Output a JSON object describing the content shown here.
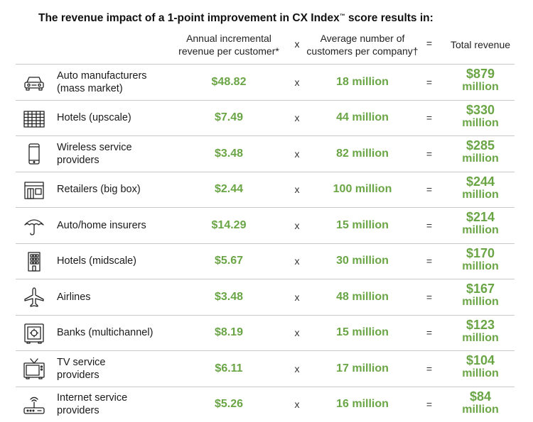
{
  "title": {
    "text": "The revenue impact of a 1-point improvement in CX Index",
    "tm": "™",
    "suffix": " score results in:"
  },
  "headers": {
    "annual_line1": "Annual incremental",
    "annual_line2": "revenue per customer*",
    "times": "x",
    "avg_line1": "Average number of",
    "avg_line2": "customers per company†",
    "equals": "=",
    "total": "Total revenue"
  },
  "colors": {
    "accent": "#6aa545",
    "rule": "#c9c9c9"
  },
  "rows": [
    {
      "icon": "car-icon",
      "label_line1": "Auto manufacturers",
      "label_line2": "(mass market)",
      "revenue": "$48.82",
      "x": "x",
      "customers": "18 million",
      "eq": "=",
      "total_amount": "$879",
      "total_unit": "million"
    },
    {
      "icon": "hotel-upscale-icon",
      "label_line1": "Hotels (upscale)",
      "label_line2": "",
      "revenue": "$7.49",
      "x": "x",
      "customers": "44 million",
      "eq": "=",
      "total_amount": "$330",
      "total_unit": "million"
    },
    {
      "icon": "mobile-phone-icon",
      "label_line1": "Wireless service",
      "label_line2": "providers",
      "revenue": "$3.48",
      "x": "x",
      "customers": "82 million",
      "eq": "=",
      "total_amount": "$285",
      "total_unit": "million"
    },
    {
      "icon": "store-icon",
      "label_line1": "Retailers (big box)",
      "label_line2": "",
      "revenue": "$2.44",
      "x": "x",
      "customers": "100 million",
      "eq": "=",
      "total_amount": "$244",
      "total_unit": "million"
    },
    {
      "icon": "umbrella-icon",
      "label_line1": "Auto/home insurers",
      "label_line2": "",
      "revenue": "$14.29",
      "x": "x",
      "customers": "15 million",
      "eq": "=",
      "total_amount": "$214",
      "total_unit": "million"
    },
    {
      "icon": "hotel-midscale-icon",
      "label_line1": "Hotels (midscale)",
      "label_line2": "",
      "revenue": "$5.67",
      "x": "x",
      "customers": "30 million",
      "eq": "=",
      "total_amount": "$170",
      "total_unit": "million"
    },
    {
      "icon": "airplane-icon",
      "label_line1": "Airlines",
      "label_line2": "",
      "revenue": "$3.48",
      "x": "x",
      "customers": "48 million",
      "eq": "=",
      "total_amount": "$167",
      "total_unit": "million"
    },
    {
      "icon": "safe-icon",
      "label_line1": "Banks (multichannel)",
      "label_line2": "",
      "revenue": "$8.19",
      "x": "x",
      "customers": "15 million",
      "eq": "=",
      "total_amount": "$123",
      "total_unit": "million"
    },
    {
      "icon": "tv-icon",
      "label_line1": "TV service",
      "label_line2": "providers",
      "revenue": "$6.11",
      "x": "x",
      "customers": "17 million",
      "eq": "=",
      "total_amount": "$104",
      "total_unit": "million"
    },
    {
      "icon": "router-icon",
      "label_line1": "Internet service",
      "label_line2": "providers",
      "revenue": "$5.26",
      "x": "x",
      "customers": "16 million",
      "eq": "=",
      "total_amount": "$84",
      "total_unit": "million"
    }
  ]
}
